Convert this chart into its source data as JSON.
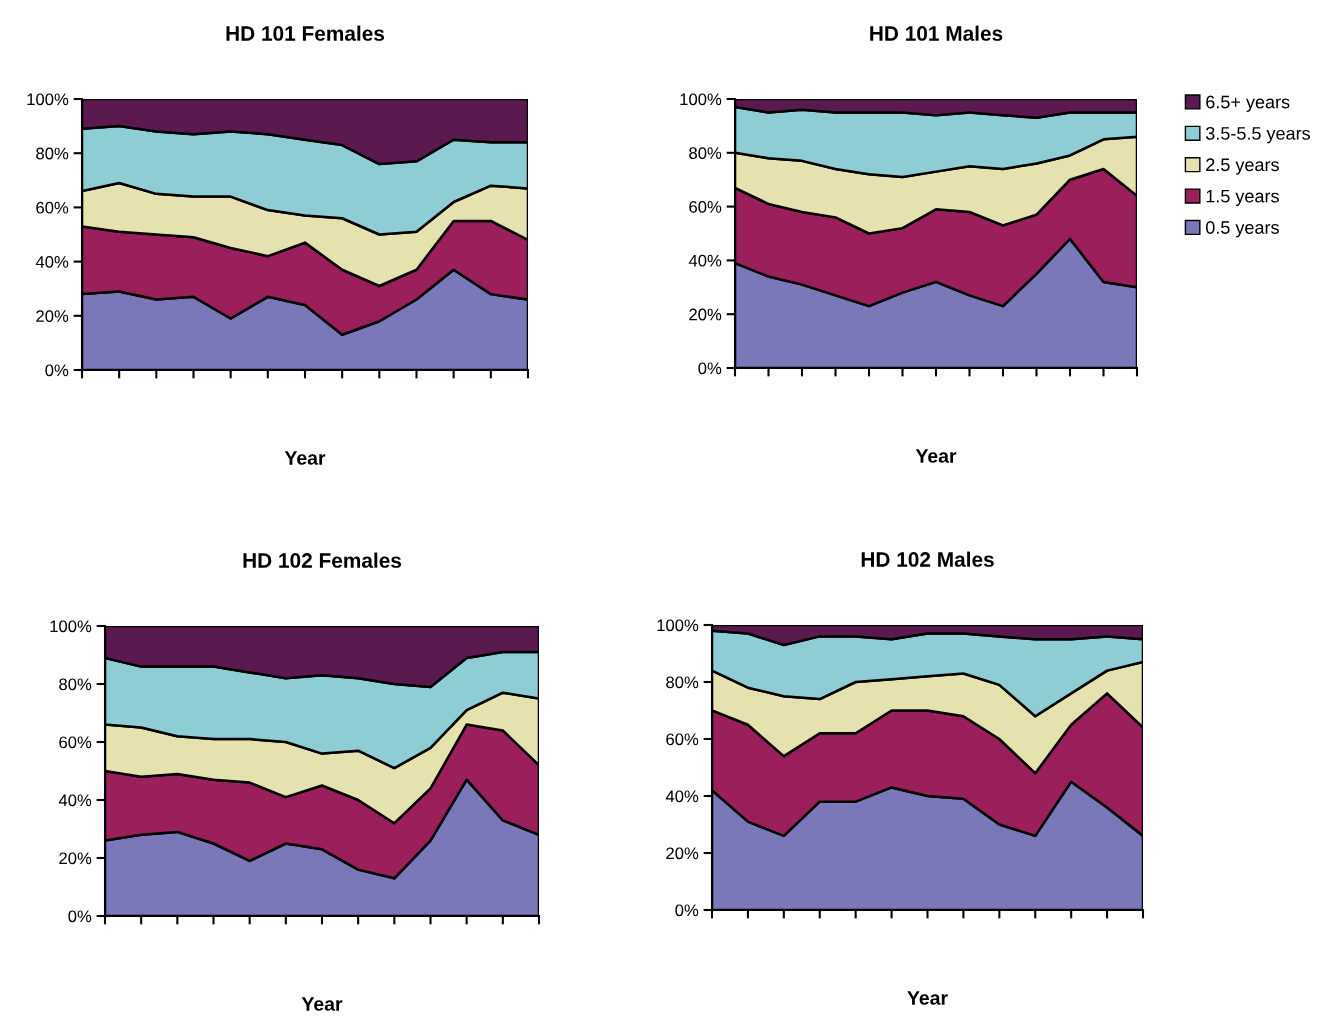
{
  "chart_data": [
    {
      "type": "area",
      "stacked": true,
      "title": "HD 101 Females",
      "xlabel": "Year",
      "categories": [
        null,
        null,
        null,
        null,
        null,
        null,
        null,
        null,
        null,
        null,
        null,
        null,
        null
      ],
      "ylim": [
        0,
        100
      ],
      "yticks": [
        {
          "value": 0,
          "label": "0%"
        },
        {
          "value": 20,
          "label": "20%"
        },
        {
          "value": 40,
          "label": "40%"
        },
        {
          "value": 60,
          "label": "60%"
        },
        {
          "value": 80,
          "label": "80%"
        },
        {
          "value": 100,
          "label": "100%"
        }
      ],
      "tick_labels": "y",
      "grid": false,
      "legend": false,
      "series": [
        {
          "color": "#7a78b8",
          "values": [
            28,
            29,
            26,
            27,
            19,
            27,
            24,
            13,
            18,
            26,
            37,
            28,
            26
          ]
        },
        {
          "color": "#9a1f5a",
          "values": [
            25,
            22,
            24,
            22,
            26,
            15,
            23,
            24,
            13,
            11,
            18,
            27,
            22
          ]
        },
        {
          "color": "#e6e2b0",
          "values": [
            13,
            18,
            15,
            15,
            19,
            17,
            10,
            19,
            19,
            14,
            7,
            13,
            19
          ]
        },
        {
          "color": "#8fcdd4",
          "values": [
            23,
            21,
            23,
            23,
            24,
            28,
            28,
            27,
            26,
            26,
            23,
            16,
            17
          ]
        },
        {
          "color": "#5a1a50",
          "values": [
            11,
            10,
            12,
            13,
            12,
            13,
            15,
            17,
            24,
            23,
            15,
            16,
            16
          ]
        }
      ]
    },
    {
      "type": "area",
      "stacked": true,
      "title": "HD 101 Males",
      "xlabel": "Year",
      "categories": [
        null,
        null,
        null,
        null,
        null,
        null,
        null,
        null,
        null,
        null,
        null,
        null,
        null
      ],
      "ylim": [
        0,
        100
      ],
      "yticks": [
        {
          "value": 0,
          "label": "0%"
        },
        {
          "value": 20,
          "label": "20%"
        },
        {
          "value": 40,
          "label": "40%"
        },
        {
          "value": 60,
          "label": "60%"
        },
        {
          "value": 80,
          "label": "80%"
        },
        {
          "value": 100,
          "label": "100%"
        }
      ],
      "tick_labels": "y",
      "grid": false,
      "legend": "right",
      "series": [
        {
          "name": "0.5 years",
          "color": "#7a78b8",
          "values": [
            39,
            34,
            31,
            27,
            23,
            28,
            32,
            27,
            23,
            35,
            48,
            32,
            30
          ]
        },
        {
          "name": "1.5 years",
          "color": "#9a1f5a",
          "values": [
            28,
            27,
            27,
            29,
            27,
            24,
            27,
            31,
            30,
            22,
            22,
            42,
            34
          ]
        },
        {
          "name": "2.5 years",
          "color": "#e6e2b0",
          "values": [
            13,
            17,
            19,
            18,
            22,
            19,
            14,
            17,
            21,
            19,
            9,
            11,
            22
          ]
        },
        {
          "name": "3.5-5.5 years",
          "color": "#8fcdd4",
          "values": [
            17,
            17,
            19,
            21,
            23,
            24,
            21,
            20,
            20,
            17,
            16,
            10,
            9
          ]
        },
        {
          "name": "6.5+ years",
          "color": "#5a1a50",
          "values": [
            3,
            5,
            4,
            5,
            5,
            5,
            6,
            5,
            6,
            7,
            5,
            5,
            5
          ]
        }
      ]
    },
    {
      "type": "area",
      "stacked": true,
      "title": "HD 102 Females",
      "xlabel": "Year",
      "categories": [
        null,
        null,
        null,
        null,
        null,
        null,
        null,
        null,
        null,
        null,
        null,
        null,
        null
      ],
      "ylim": [
        0,
        100
      ],
      "yticks": [
        {
          "value": 0,
          "label": "0%"
        },
        {
          "value": 20,
          "label": "20%"
        },
        {
          "value": 40,
          "label": "40%"
        },
        {
          "value": 60,
          "label": "60%"
        },
        {
          "value": 80,
          "label": "80%"
        },
        {
          "value": 100,
          "label": "100%"
        }
      ],
      "tick_labels": "y",
      "grid": false,
      "legend": false,
      "series": [
        {
          "color": "#7a78b8",
          "values": [
            26,
            28,
            29,
            25,
            19,
            25,
            23,
            16,
            13,
            26,
            47,
            33,
            28
          ]
        },
        {
          "color": "#9a1f5a",
          "values": [
            24,
            20,
            20,
            22,
            27,
            16,
            22,
            24,
            19,
            18,
            19,
            31,
            24
          ]
        },
        {
          "color": "#e6e2b0",
          "values": [
            16,
            17,
            13,
            14,
            15,
            19,
            11,
            17,
            19,
            14,
            5,
            13,
            23
          ]
        },
        {
          "color": "#8fcdd4",
          "values": [
            23,
            21,
            24,
            25,
            23,
            22,
            27,
            25,
            29,
            21,
            18,
            14,
            16
          ]
        },
        {
          "color": "#5a1a50",
          "values": [
            11,
            14,
            14,
            14,
            16,
            18,
            17,
            18,
            20,
            21,
            11,
            9,
            9
          ]
        }
      ]
    },
    {
      "type": "area",
      "stacked": true,
      "title": "HD 102 Males",
      "xlabel": "Year",
      "categories": [
        null,
        null,
        null,
        null,
        null,
        null,
        null,
        null,
        null,
        null,
        null,
        null,
        null
      ],
      "ylim": [
        0,
        100
      ],
      "yticks": [
        {
          "value": 0,
          "label": "0%"
        },
        {
          "value": 20,
          "label": "20%"
        },
        {
          "value": 40,
          "label": "40%"
        },
        {
          "value": 60,
          "label": "60%"
        },
        {
          "value": 80,
          "label": "80%"
        },
        {
          "value": 100,
          "label": "100%"
        }
      ],
      "tick_labels": "y",
      "grid": false,
      "legend": false,
      "series": [
        {
          "color": "#7a78b8",
          "values": [
            42,
            31,
            26,
            38,
            38,
            43,
            40,
            39,
            30,
            26,
            45,
            36,
            26
          ]
        },
        {
          "color": "#9a1f5a",
          "values": [
            28,
            34,
            28,
            24,
            24,
            27,
            30,
            29,
            30,
            22,
            20,
            40,
            38
          ]
        },
        {
          "color": "#e6e2b0",
          "values": [
            14,
            13,
            21,
            12,
            18,
            11,
            12,
            15,
            19,
            20,
            11,
            8,
            23
          ]
        },
        {
          "color": "#8fcdd4",
          "values": [
            14,
            19,
            18,
            22,
            16,
            14,
            15,
            14,
            17,
            27,
            19,
            12,
            8
          ]
        },
        {
          "color": "#5a1a50",
          "values": [
            2,
            3,
            7,
            4,
            4,
            5,
            3,
            3,
            4,
            5,
            5,
            4,
            5
          ]
        }
      ]
    }
  ]
}
